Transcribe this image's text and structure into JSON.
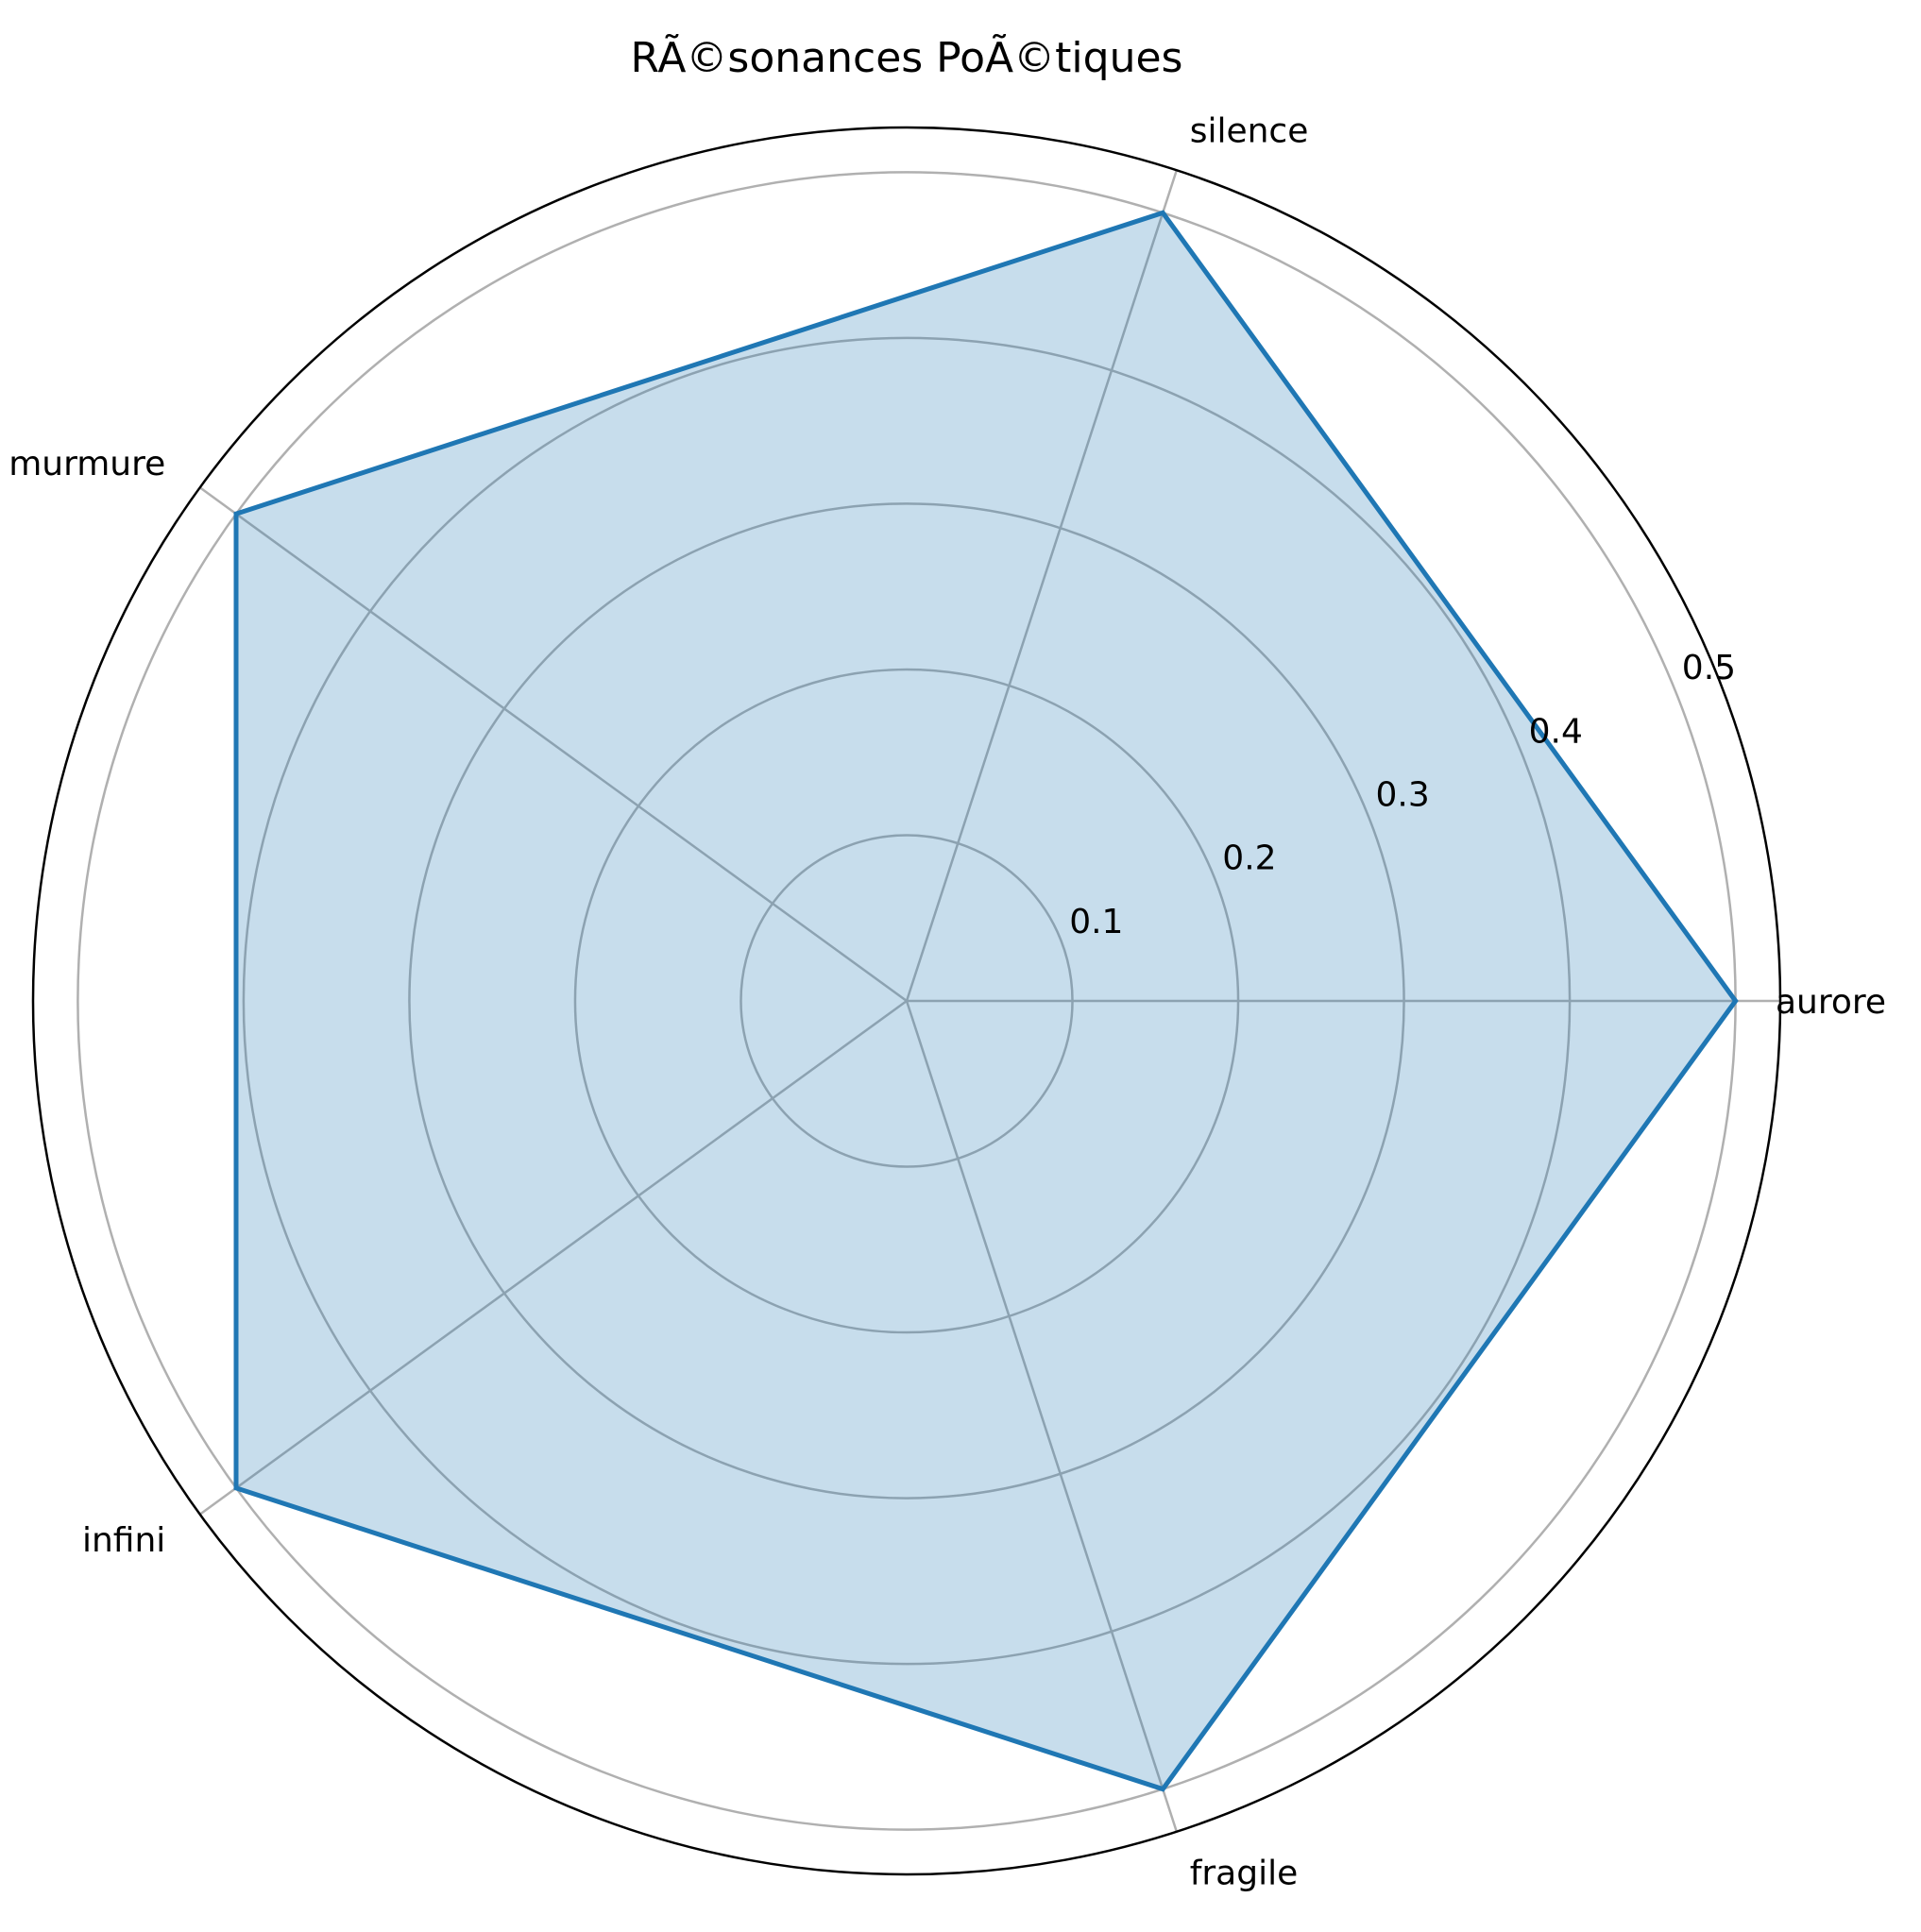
{
  "chart_data": {
    "type": "radar",
    "title": "RÃ©sonances PoÃ©tiques",
    "categories": [
      "aurore",
      "silence",
      "murmure",
      "infini",
      "fragile"
    ],
    "series": [
      {
        "values": [
          0.5,
          0.5,
          0.5,
          0.5,
          0.5
        ],
        "color": "#1f77b4",
        "fill_color": "#1f77b4",
        "fill_opacity": 0.25
      }
    ],
    "radial_ticks": [
      "0.1",
      "0.2",
      "0.3",
      "0.4",
      "0.5"
    ],
    "radial_tick_values": [
      0.1,
      0.2,
      0.3,
      0.4,
      0.5
    ],
    "rlim": [
      0,
      0.527
    ],
    "grid": true,
    "grid_color": "#b0b0b0",
    "legend": "none"
  }
}
